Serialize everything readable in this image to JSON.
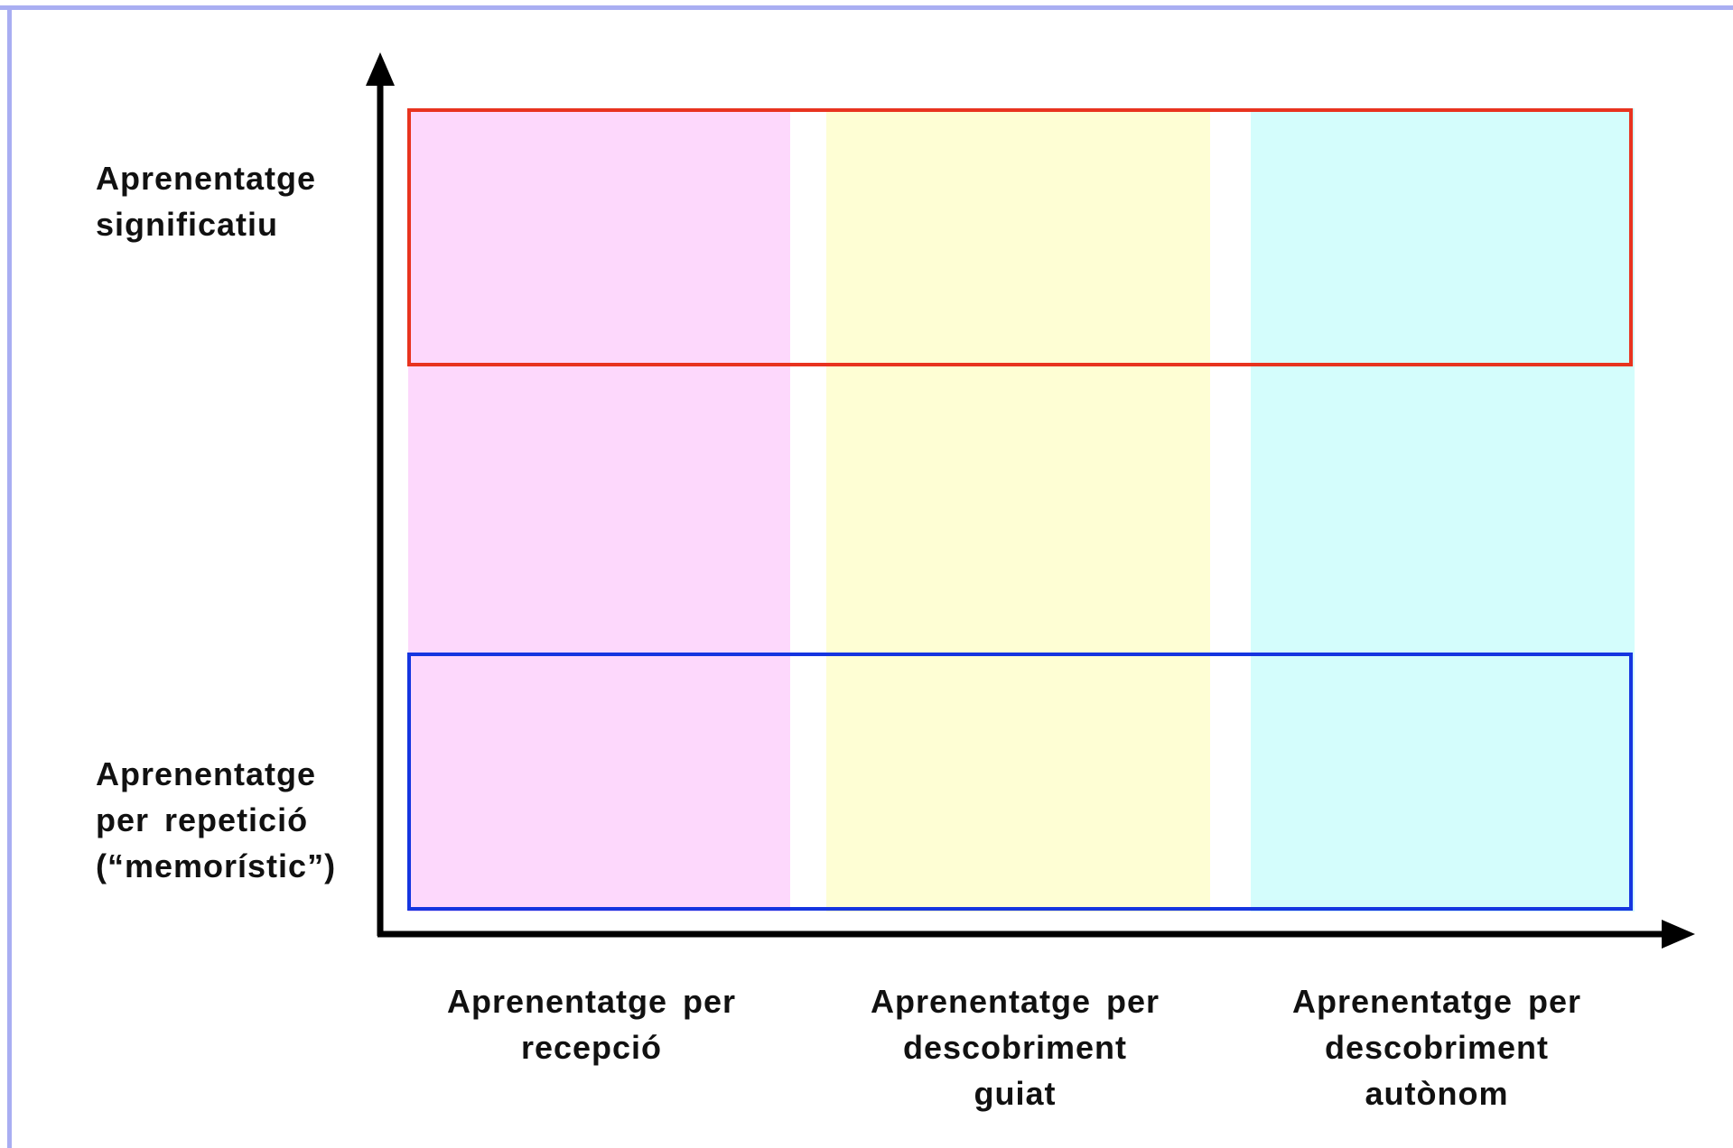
{
  "diagram": {
    "y_labels": {
      "top": "Aprenentatge\nsignificatiu",
      "bottom": "Aprenentatge\nper repetició\n(“memorístic”)"
    },
    "x_labels": [
      "Aprenentatge per\nrecepció",
      "Aprenentatge per\ndescobriment\nguiat",
      "Aprenentatge per\ndescobriment\nautònom"
    ],
    "colors": {
      "column_1": "#fdd8fc",
      "column_2": "#fefed4",
      "column_3": "#d4fdfc",
      "top_box": "#e8331f",
      "bottom_box": "#1535e0",
      "axes": "#000000",
      "frame": "#a9aef2"
    }
  }
}
